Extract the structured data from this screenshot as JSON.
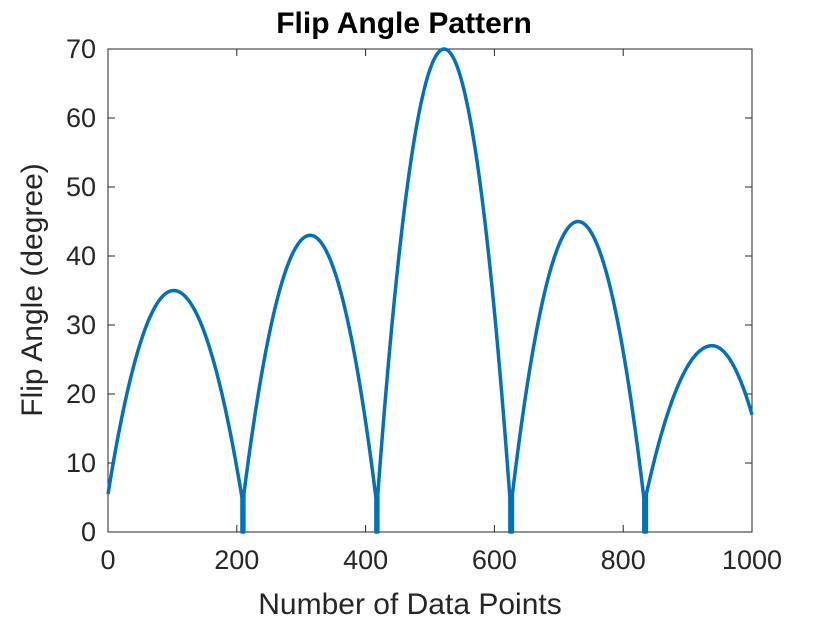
{
  "chart_data": {
    "type": "line",
    "title": "Flip Angle Pattern",
    "xlabel": "Number of Data Points",
    "ylabel": "Flip Angle (degree)",
    "xlim": [
      0,
      1000
    ],
    "ylim": [
      0,
      70
    ],
    "xticks": [
      0,
      200,
      400,
      600,
      800,
      1000
    ],
    "yticks": [
      0,
      10,
      20,
      30,
      40,
      50,
      60,
      70
    ],
    "xtick_labels": [
      "0",
      "200",
      "400",
      "600",
      "800",
      "1000"
    ],
    "ytick_labels": [
      "0",
      "10",
      "20",
      "30",
      "40",
      "50",
      "60",
      "70"
    ],
    "grid": false,
    "series": [
      {
        "color": "#0072BD",
        "lobes": [
          {
            "start": 0,
            "end": 208,
            "peak_x": 102,
            "peak": 35,
            "start_value": 5.5,
            "end_value": 5
          },
          {
            "start": 211,
            "end": 416,
            "peak_x": 314,
            "peak": 43,
            "start_value": 5.5,
            "end_value": 5
          },
          {
            "start": 419,
            "end": 624,
            "peak_x": 522,
            "peak": 70,
            "start_value": 5.5,
            "end_value": 5
          },
          {
            "start": 628,
            "end": 832,
            "peak_x": 730,
            "peak": 45,
            "start_value": 5.5,
            "end_value": 5
          },
          {
            "start": 836,
            "end": 1000,
            "peak_x": 938,
            "peak": 27,
            "start_value": 5.5,
            "end_value": 17
          }
        ],
        "zero_gaps": [
          [
            208,
            211
          ],
          [
            416,
            419
          ],
          [
            624,
            628
          ],
          [
            832,
            836
          ]
        ]
      }
    ]
  }
}
